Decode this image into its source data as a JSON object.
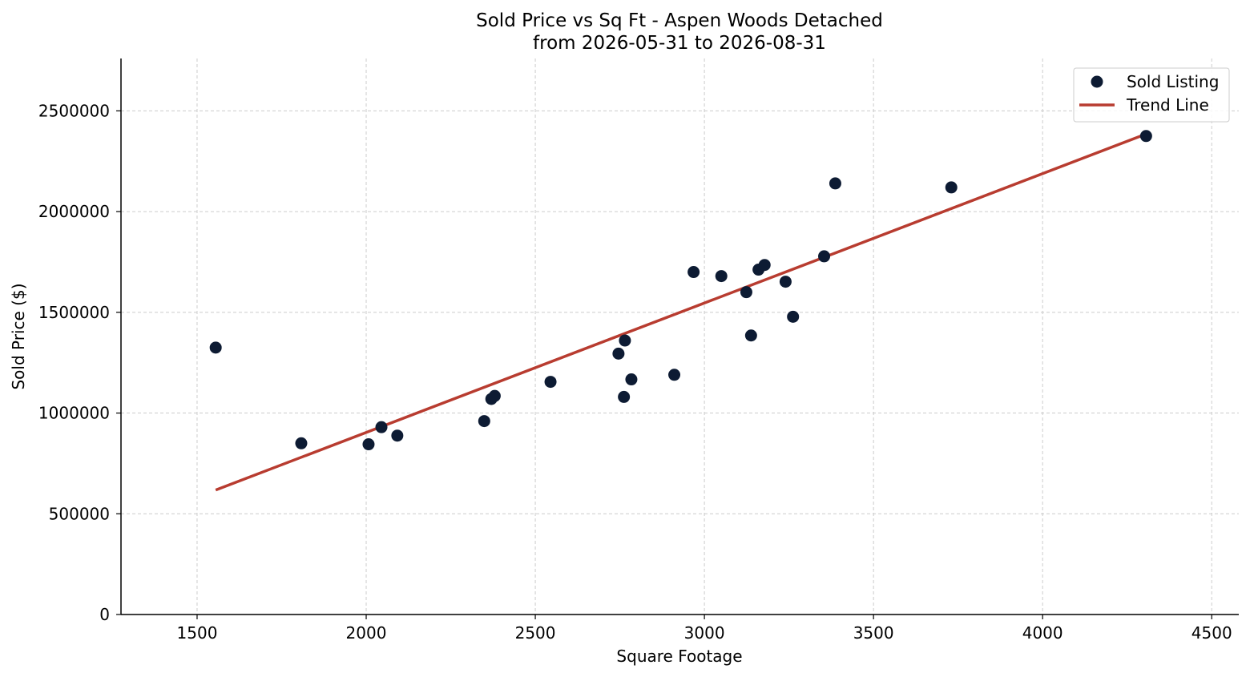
{
  "chart_data": {
    "type": "scatter",
    "title": "Sold Price vs Sq Ft - Aspen Woods Detached",
    "subtitle": "from 2026-05-31 to 2026-08-31",
    "xlabel": "Square Footage",
    "ylabel": "Sold Price ($)",
    "xlim": [
      1275,
      4580
    ],
    "ylim": [
      0,
      2760000
    ],
    "xticks": [
      1500,
      2000,
      2500,
      3000,
      3500,
      4000,
      4500
    ],
    "yticks": [
      0,
      500000,
      1000000,
      1500000,
      2000000,
      2500000
    ],
    "grid": true,
    "legend_position": "top-right",
    "series": [
      {
        "name": "Sold Listing",
        "kind": "scatter",
        "color": "#0d1b33",
        "points": [
          {
            "x": 1555,
            "y": 1325000
          },
          {
            "x": 1808,
            "y": 850000
          },
          {
            "x": 2007,
            "y": 845000
          },
          {
            "x": 2045,
            "y": 930000
          },
          {
            "x": 2092,
            "y": 888000
          },
          {
            "x": 2349,
            "y": 960000
          },
          {
            "x": 2370,
            "y": 1070000
          },
          {
            "x": 2380,
            "y": 1085000
          },
          {
            "x": 2545,
            "y": 1155000
          },
          {
            "x": 2746,
            "y": 1295000
          },
          {
            "x": 2762,
            "y": 1080000
          },
          {
            "x": 2765,
            "y": 1360000
          },
          {
            "x": 2784,
            "y": 1167000
          },
          {
            "x": 2911,
            "y": 1190000
          },
          {
            "x": 2968,
            "y": 1700000
          },
          {
            "x": 3050,
            "y": 1680000
          },
          {
            "x": 3124,
            "y": 1600000
          },
          {
            "x": 3138,
            "y": 1385000
          },
          {
            "x": 3160,
            "y": 1712000
          },
          {
            "x": 3178,
            "y": 1735000
          },
          {
            "x": 3240,
            "y": 1652000
          },
          {
            "x": 3262,
            "y": 1478000
          },
          {
            "x": 3354,
            "y": 1778000
          },
          {
            "x": 3387,
            "y": 2140000
          },
          {
            "x": 3730,
            "y": 2120000
          },
          {
            "x": 4306,
            "y": 2375000
          }
        ]
      },
      {
        "name": "Trend Line",
        "kind": "line",
        "color": "#b83c30",
        "points": [
          {
            "x": 1555,
            "y": 618000
          },
          {
            "x": 4306,
            "y": 2385000
          }
        ]
      }
    ]
  }
}
